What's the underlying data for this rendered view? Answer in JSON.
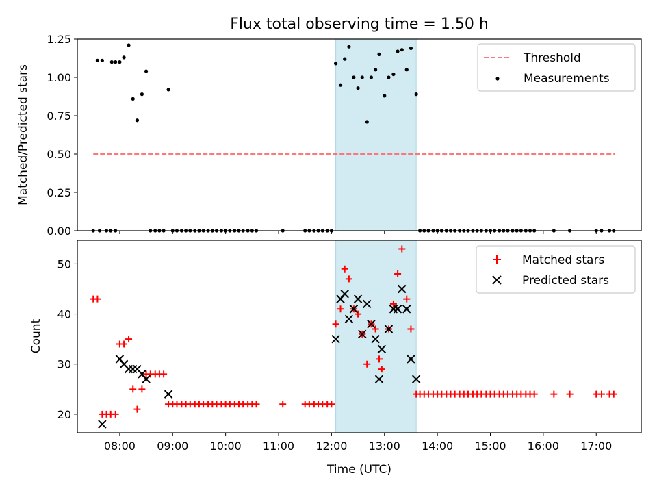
{
  "chart_data": [
    {
      "panel": "top",
      "type": "scatter",
      "title": "Flux total observing time = 1.50 h",
      "xlabel": "",
      "ylabel": "Matched/Predicted stars",
      "xlim": [
        7.2,
        17.85
      ],
      "ylim": [
        0,
        1.25
      ],
      "y_ticks": [
        0,
        0.25,
        0.5,
        0.75,
        1.0,
        1.25
      ],
      "y_tick_labels": [
        "0.00",
        "0.25",
        "0.50",
        "0.75",
        "1.00",
        "1.25"
      ],
      "legend": [
        "Threshold",
        "Measurements"
      ],
      "legend_position": "top-right",
      "shaded_interval": {
        "from": 12.08,
        "to": 13.6,
        "color": "#add8e6"
      },
      "threshold": {
        "name": "Threshold",
        "y": 0.5,
        "x_from": 7.5,
        "x_to": 17.35,
        "color": "#ff6666"
      },
      "series": [
        {
          "name": "Measurements",
          "color": "#000000",
          "x": [
            7.58,
            7.67,
            7.85,
            7.92,
            8.0,
            8.08,
            8.17,
            8.25,
            8.33,
            8.42,
            8.5,
            8.92,
            12.08,
            12.17,
            12.25,
            12.33,
            12.42,
            12.5,
            12.58,
            12.67,
            12.75,
            12.83,
            12.9,
            13.0,
            13.08,
            13.17,
            13.25,
            13.33,
            13.42,
            13.5,
            13.6,
            7.5,
            7.62,
            7.75,
            7.83,
            7.92,
            8.58,
            8.67,
            8.75,
            8.83,
            9.0,
            9.08,
            9.17,
            9.25,
            9.33,
            9.42,
            9.5,
            9.58,
            9.67,
            9.75,
            9.83,
            9.92,
            10.0,
            10.08,
            10.17,
            10.25,
            10.33,
            10.42,
            10.5,
            10.58,
            11.08,
            11.5,
            11.58,
            11.67,
            11.75,
            11.83,
            11.92,
            12.0,
            13.67,
            13.75,
            13.83,
            13.92,
            14.0,
            14.08,
            14.17,
            14.25,
            14.33,
            14.42,
            14.5,
            14.58,
            14.67,
            14.75,
            14.83,
            14.92,
            15.0,
            15.08,
            15.17,
            15.25,
            15.33,
            15.42,
            15.5,
            15.58,
            15.67,
            15.75,
            15.83,
            16.2,
            16.5,
            17.0,
            17.1,
            17.25,
            17.33
          ],
          "y": [
            1.11,
            1.11,
            1.1,
            1.1,
            1.1,
            1.13,
            1.21,
            0.86,
            0.72,
            0.89,
            1.04,
            0.92,
            1.09,
            0.95,
            1.12,
            1.2,
            1.0,
            0.93,
            1.0,
            0.71,
            1.0,
            1.05,
            1.15,
            0.88,
            1.0,
            1.02,
            1.17,
            1.18,
            1.05,
            1.19,
            0.89,
            0.0,
            0.0,
            0.0,
            0.0,
            0.0,
            0.0,
            0.0,
            0.0,
            0.0,
            0.0,
            0.0,
            0.0,
            0.0,
            0.0,
            0.0,
            0.0,
            0.0,
            0.0,
            0.0,
            0.0,
            0.0,
            0.0,
            0.0,
            0.0,
            0.0,
            0.0,
            0.0,
            0.0,
            0.0,
            0.0,
            0.0,
            0.0,
            0.0,
            0.0,
            0.0,
            0.0,
            0.0,
            0.0,
            0.0,
            0.0,
            0.0,
            0.0,
            0.0,
            0.0,
            0.0,
            0.0,
            0.0,
            0.0,
            0.0,
            0.0,
            0.0,
            0.0,
            0.0,
            0.0,
            0.0,
            0.0,
            0.0,
            0.0,
            0.0,
            0.0,
            0.0,
            0.0,
            0.0,
            0.0,
            0.0,
            0.0,
            0.0,
            0.0,
            0.0,
            0.0
          ]
        }
      ]
    },
    {
      "panel": "bottom",
      "type": "scatter",
      "title": "",
      "xlabel": "Time (UTC)",
      "ylabel": "Count",
      "xlim": [
        7.2,
        17.85
      ],
      "ylim": [
        16.3,
        54.7
      ],
      "x_ticks": [
        8,
        9,
        10,
        11,
        12,
        13,
        14,
        15,
        16,
        17
      ],
      "x_tick_labels": [
        "08:00",
        "09:00",
        "10:00",
        "11:00",
        "12:00",
        "13:00",
        "14:00",
        "15:00",
        "16:00",
        "17:00"
      ],
      "y_ticks": [
        20,
        30,
        40,
        50
      ],
      "y_tick_labels": [
        "20",
        "30",
        "40",
        "50"
      ],
      "legend": [
        "Matched stars",
        "Predicted stars"
      ],
      "legend_position": "top-right",
      "shaded_interval": {
        "from": 12.08,
        "to": 13.6,
        "color": "#add8e6"
      },
      "series": [
        {
          "name": "Matched stars",
          "marker": "plus",
          "color": "#ff0000",
          "x": [
            7.5,
            7.58,
            7.67,
            7.75,
            7.83,
            7.92,
            8.0,
            8.08,
            8.17,
            8.25,
            8.33,
            8.42,
            8.5,
            8.58,
            8.67,
            8.75,
            8.83,
            8.92,
            9.0,
            9.08,
            9.17,
            9.25,
            9.33,
            9.42,
            9.5,
            9.58,
            9.67,
            9.75,
            9.83,
            9.92,
            10.0,
            10.08,
            10.17,
            10.25,
            10.33,
            10.42,
            10.5,
            10.58,
            11.08,
            11.5,
            11.58,
            11.67,
            11.75,
            11.83,
            11.92,
            12.0,
            12.08,
            12.17,
            12.25,
            12.33,
            12.42,
            12.5,
            12.58,
            12.67,
            12.75,
            12.83,
            12.9,
            12.95,
            13.08,
            13.17,
            13.25,
            13.33,
            13.42,
            13.5,
            13.6,
            13.67,
            13.75,
            13.83,
            13.92,
            14.0,
            14.08,
            14.17,
            14.25,
            14.33,
            14.42,
            14.5,
            14.58,
            14.67,
            14.75,
            14.83,
            14.92,
            15.0,
            15.08,
            15.17,
            15.25,
            15.33,
            15.42,
            15.5,
            15.58,
            15.67,
            15.75,
            15.83,
            16.2,
            16.5,
            17.0,
            17.1,
            17.25,
            17.33
          ],
          "y": [
            43,
            43,
            20,
            20,
            20,
            20,
            34,
            34,
            35,
            25,
            21,
            25,
            28,
            28,
            28,
            28,
            28,
            22,
            22,
            22,
            22,
            22,
            22,
            22,
            22,
            22,
            22,
            22,
            22,
            22,
            22,
            22,
            22,
            22,
            22,
            22,
            22,
            22,
            22,
            22,
            22,
            22,
            22,
            22,
            22,
            22,
            38,
            41,
            49,
            47,
            41,
            40,
            36,
            30,
            38,
            37,
            31,
            29,
            37,
            42,
            48,
            53,
            43,
            37,
            24,
            24,
            24,
            24,
            24,
            24,
            24,
            24,
            24,
            24,
            24,
            24,
            24,
            24,
            24,
            24,
            24,
            24,
            24,
            24,
            24,
            24,
            24,
            24,
            24,
            24,
            24,
            24,
            24,
            24,
            24,
            24,
            24,
            24
          ]
        },
        {
          "name": "Predicted stars",
          "marker": "x",
          "color": "#000000",
          "x": [
            7.67,
            8.0,
            8.08,
            8.17,
            8.25,
            8.33,
            8.42,
            8.5,
            8.92,
            12.08,
            12.17,
            12.25,
            12.33,
            12.42,
            12.5,
            12.58,
            12.67,
            12.75,
            12.83,
            12.9,
            12.95,
            13.08,
            13.17,
            13.25,
            13.33,
            13.42,
            13.5,
            13.6
          ],
          "y": [
            18,
            31,
            30,
            29,
            29,
            29,
            28,
            27,
            24,
            35,
            43,
            44,
            39,
            41,
            43,
            36,
            42,
            38,
            35,
            27,
            33,
            37,
            41,
            41,
            45,
            41,
            31,
            27
          ]
        }
      ]
    }
  ]
}
